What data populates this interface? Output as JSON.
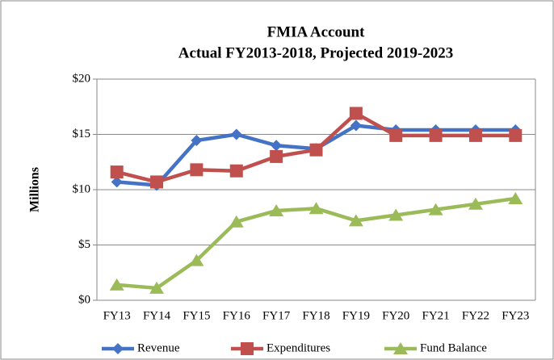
{
  "chart_data": {
    "type": "line",
    "title": [
      "FMIA Account",
      "Actual FY2013-2018, Projected 2019-2023"
    ],
    "ylabel": "Millions",
    "categories": [
      "FY13",
      "FY14",
      "FY15",
      "FY16",
      "FY17",
      "FY18",
      "FY19",
      "FY20",
      "FY21",
      "FY22",
      "FY23"
    ],
    "series": [
      {
        "name": "Revenue",
        "color": "#4472c4",
        "marker": "diamond",
        "values": [
          10.7,
          10.4,
          14.45,
          15.0,
          14.0,
          13.7,
          15.8,
          15.4,
          15.4,
          15.4,
          15.4
        ]
      },
      {
        "name": "Expenditures",
        "color": "#c0504d",
        "marker": "square",
        "values": [
          11.6,
          10.7,
          11.8,
          11.7,
          13.0,
          13.6,
          16.9,
          14.9,
          14.9,
          14.9,
          14.9
        ]
      },
      {
        "name": "Fund Balance",
        "color": "#9bbb59",
        "marker": "triangle",
        "values": [
          1.4,
          1.1,
          3.6,
          7.1,
          8.1,
          8.3,
          7.2,
          7.7,
          8.2,
          8.7,
          9.2
        ]
      }
    ],
    "ylim": [
      0,
      20
    ],
    "yticks": [
      {
        "value": 0,
        "label": "$0"
      },
      {
        "value": 5,
        "label": "$5"
      },
      {
        "value": 10,
        "label": "$10"
      },
      {
        "value": 15,
        "label": "$15"
      },
      {
        "value": 20,
        "label": "$20"
      }
    ],
    "grid": true,
    "legend": "bottom"
  }
}
